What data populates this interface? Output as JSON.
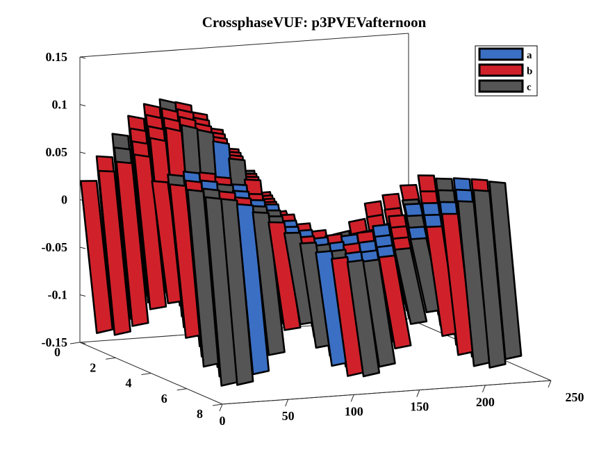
{
  "chart_data": {
    "type": "3d-ribbon",
    "title": "CrossphaseVUF: p3PVEVafternoon",
    "xlabel": "",
    "ylabel": "",
    "zlabel": "",
    "x_ticks": [
      "0",
      "50",
      "100",
      "150",
      "200",
      "250"
    ],
    "xlim": [
      0,
      250
    ],
    "y_ticks": [
      "0",
      "2",
      "4",
      "6",
      "8"
    ],
    "ylim": [
      0,
      8
    ],
    "z_ticks": [
      "0.15",
      "0.1",
      "0.05",
      "0",
      "-0.05",
      "-0.1",
      "-0.15"
    ],
    "zlim": [
      -0.15,
      0.15
    ],
    "legend_position": "top-right",
    "series": [
      {
        "name": "a",
        "color": "#3a6fc4"
      },
      {
        "name": "b",
        "color": "#d0212a"
      },
      {
        "name": "c",
        "color": "#555555"
      }
    ],
    "edge_color": "#000000"
  }
}
